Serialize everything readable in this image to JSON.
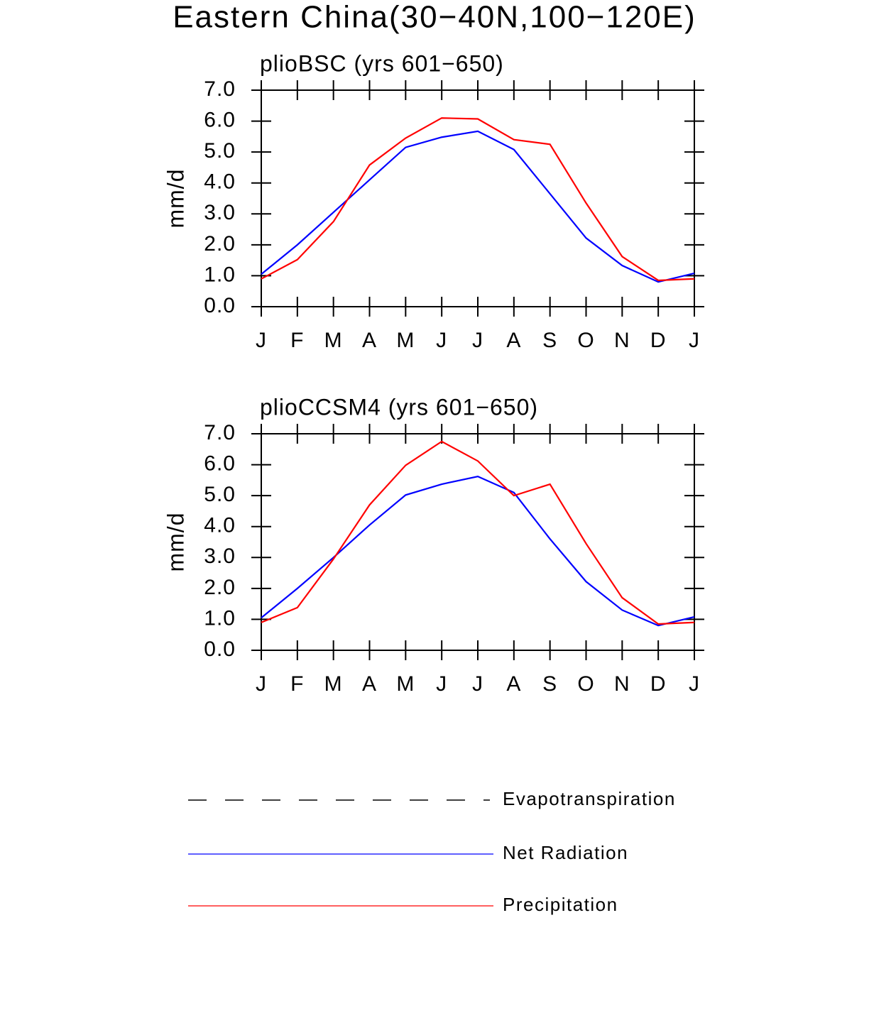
{
  "title": "Eastern China(30−40N,100−120E)",
  "legend": [
    {
      "name": "Evapotranspiration",
      "color": "#000000",
      "dashed": true
    }
  ],
  "chart_data": [
    {
      "type": "line",
      "title": "plioBSC (yrs 601−650)",
      "y_label": "mm/d",
      "categories": [
        "J",
        "F",
        "M",
        "A",
        "M",
        "J",
        "J",
        "A",
        "S",
        "O",
        "N",
        "D",
        "J"
      ],
      "series": [
        {
          "name": "Net Radiation",
          "color": "#0000ff",
          "values": [
            1.05,
            2.0,
            3.05,
            4.1,
            5.15,
            5.48,
            5.67,
            5.08,
            3.65,
            2.22,
            1.33,
            0.8,
            1.08
          ]
        },
        {
          "name": "Precipitation",
          "color": "#ff0000",
          "values": [
            0.9,
            1.52,
            2.75,
            4.58,
            5.45,
            6.1,
            6.07,
            5.4,
            5.25,
            3.35,
            1.62,
            0.85,
            0.9
          ]
        }
      ],
      "ylim": [
        0,
        7
      ],
      "yticks": [
        {
          "value": 0,
          "label": "0.0"
        },
        {
          "value": 1,
          "label": "1.0"
        },
        {
          "value": 2,
          "label": "2.0"
        },
        {
          "value": 3,
          "label": "3.0"
        },
        {
          "value": 4,
          "label": "4.0"
        },
        {
          "value": 5,
          "label": "5.0"
        },
        {
          "value": 6,
          "label": "6.0"
        },
        {
          "value": 7,
          "label": "7.0"
        }
      ]
    },
    {
      "type": "line",
      "title": "plioCCSM4 (yrs 601−650)",
      "y_label": "mm/d",
      "categories": [
        "J",
        "F",
        "M",
        "A",
        "M",
        "J",
        "J",
        "A",
        "S",
        "O",
        "N",
        "D",
        "J"
      ],
      "series": [
        {
          "color": "#0000ff",
          "values": [
            1.05,
            2.0,
            3.0,
            4.05,
            5.02,
            5.37,
            5.62,
            5.1,
            3.6,
            2.22,
            1.3,
            0.8,
            1.08
          ]
        },
        {
          "color": "#ff0000",
          "values": [
            0.9,
            1.38,
            2.95,
            4.7,
            5.98,
            6.75,
            6.12,
            5.0,
            5.37,
            3.45,
            1.7,
            0.85,
            0.9
          ]
        }
      ],
      "ylim": [
        0,
        7
      ],
      "yticks": [
        {
          "value": 0,
          "label": "0.0"
        },
        {
          "value": 1,
          "label": "1.0"
        },
        {
          "value": 2,
          "label": "2.0"
        },
        {
          "value": 3,
          "label": "3.0"
        },
        {
          "value": 4,
          "label": "4.0"
        },
        {
          "value": 5,
          "label": "5.0"
        },
        {
          "value": 6,
          "label": "6.0"
        },
        {
          "value": 7,
          "label": "7.0"
        }
      ]
    }
  ]
}
